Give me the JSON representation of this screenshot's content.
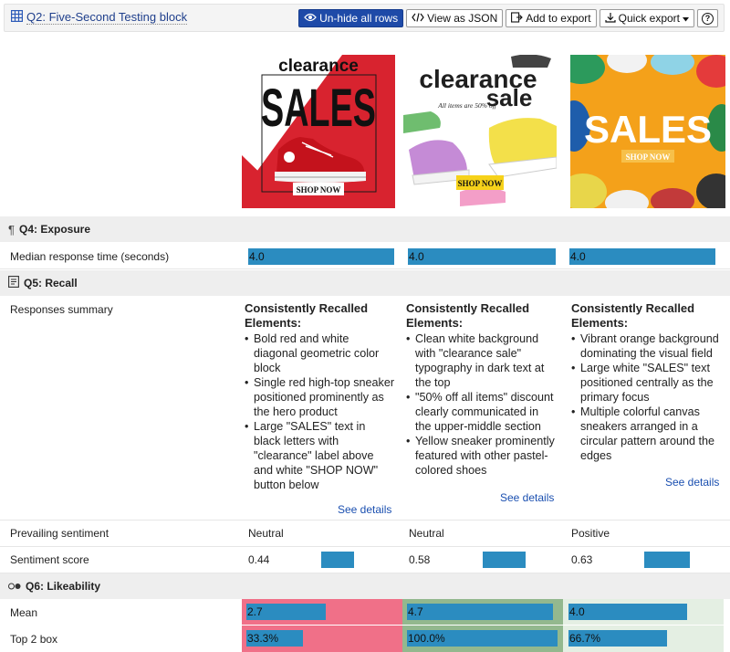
{
  "header": {
    "title": "Q2: Five-Second Testing block",
    "buttons": {
      "unhide": "Un-hide all rows",
      "json": "View as JSON",
      "add_export": "Add to export",
      "quick_export": "Quick export",
      "help": "?"
    }
  },
  "ads": [
    {
      "line1": "clearance",
      "line2": "SALES",
      "cta": "SHOP NOW"
    },
    {
      "line1": "clearance",
      "line2": "sale",
      "sub": "All items are 50% off",
      "cta": "SHOP NOW"
    },
    {
      "line1": "SALES",
      "cta": "SHOP NOW"
    }
  ],
  "sections": {
    "exposure": {
      "label": "Q4: Exposure"
    },
    "recall": {
      "label": "Q5: Recall"
    },
    "likeability": {
      "label": "Q6: Likeability"
    }
  },
  "rows": {
    "median": {
      "label": "Median response time (seconds)",
      "values": [
        "4.0",
        "4.0",
        "4.0"
      ],
      "bar_fill": [
        1.0,
        1.0,
        1.0
      ]
    },
    "responses_summary": {
      "label": "Responses summary",
      "columns": [
        {
          "heading": "Consistently Recalled Elements:",
          "items": [
            "Bold red and white diagonal geometric color block",
            "Single red high-top sneaker positioned prominently as the hero product",
            "Large \"SALES\" text in black letters with \"clearance\" label above and white \"SHOP NOW\" button below"
          ],
          "link": "See details"
        },
        {
          "heading": "Consistently Recalled Elements:",
          "items": [
            "Clean white background with \"clearance sale\" typography in dark text at the top",
            "\"50% off all items\" discount clearly communicated in the upper-middle section",
            "Yellow sneaker prominently featured with other pastel-colored shoes"
          ],
          "link": "See details"
        },
        {
          "heading": "Consistently Recalled Elements:",
          "items": [
            "Vibrant orange background dominating the visual field",
            "Large white \"SALES\" text positioned centrally as the primary focus",
            "Multiple colorful canvas sneakers arranged in a circular pattern around the edges"
          ],
          "link": "See details"
        }
      ]
    },
    "prevailing_sentiment": {
      "label": "Prevailing sentiment",
      "values": [
        "Neutral",
        "Neutral",
        "Positive"
      ]
    },
    "sentiment_score": {
      "label": "Sentiment score",
      "values": [
        "0.44",
        "0.58",
        "0.63"
      ],
      "bar_fill": [
        0.44,
        0.58,
        0.63
      ]
    },
    "mean": {
      "label": "Mean",
      "values": [
        "2.7",
        "4.7",
        "4.0"
      ],
      "bar_fill": [
        0.54,
        0.94,
        0.8
      ]
    },
    "top2": {
      "label": "Top 2 box",
      "values": [
        "33.3%",
        "100.0%",
        "66.7%"
      ],
      "bar_fill": [
        0.333,
        1.0,
        0.667
      ]
    }
  },
  "colors": {
    "bar": "#2b8cc0",
    "highlight_bad": "#f07088",
    "highlight_good": "#93b88e",
    "highlight_neutral": "#e4efe3",
    "primary_button": "#1e4aa8"
  }
}
